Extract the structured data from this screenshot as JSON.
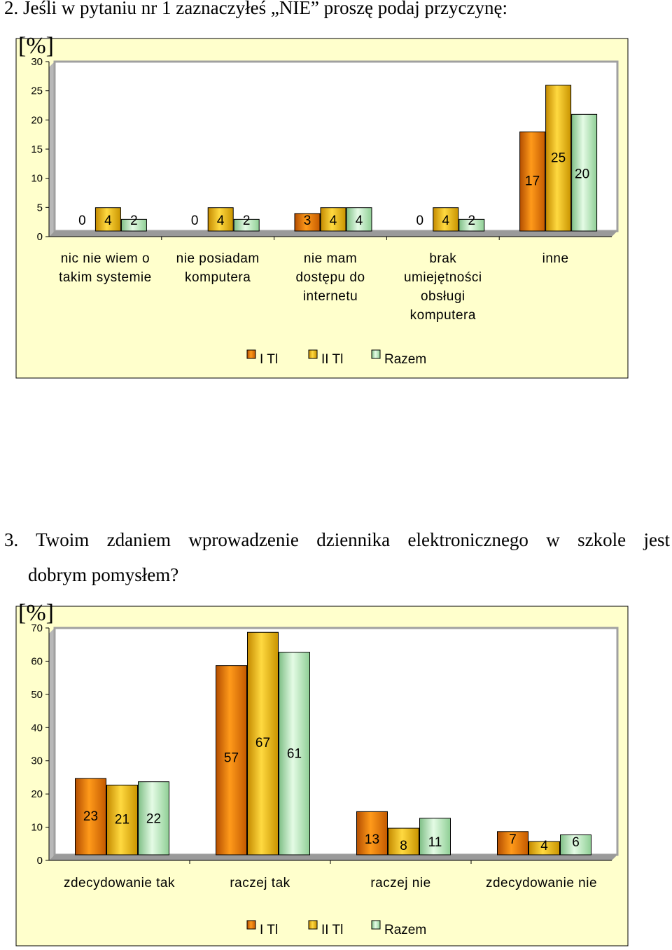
{
  "questions": {
    "q1": "2. Jeśli w pytaniu nr 1 zaznaczyłeś „NIE” proszę podaj przyczynę:",
    "q2_line1": "3. Twoim zdaniem wprowadzenie dziennika elektronicznego w szkole jest",
    "q2_line2": "dobrym pomysłem?"
  },
  "colors": {
    "I Tl": "#f08a0c",
    "II Tl": "#f7c21c",
    "Razem": "#c6f0c8",
    "plot_bg": "#ffffff",
    "chart_bg": "#ffffcc"
  },
  "chart_data": [
    {
      "type": "bar",
      "unit_label": "[%]",
      "categories": [
        [
          "nic nie wiem o",
          "takim systemie"
        ],
        [
          "nie posiadam",
          "komputera"
        ],
        [
          "nie mam",
          "dostępu do",
          "internetu"
        ],
        [
          "brak",
          "umiejętności",
          "obsługi",
          "komputera"
        ],
        [
          "inne"
        ]
      ],
      "series": [
        {
          "name": "I Tl",
          "values": [
            0,
            0,
            3,
            0,
            17
          ]
        },
        {
          "name": "II Tl",
          "values": [
            4,
            4,
            4,
            4,
            25
          ]
        },
        {
          "name": "Razem",
          "values": [
            2,
            2,
            4,
            2,
            20
          ]
        }
      ],
      "ylim": [
        0,
        30
      ],
      "yticks": [
        0,
        5,
        10,
        15,
        20,
        25,
        30
      ],
      "legend": "bottom",
      "grid": false
    },
    {
      "type": "bar",
      "unit_label": "[%]",
      "categories": [
        [
          "zdecydowanie tak"
        ],
        [
          "raczej tak"
        ],
        [
          "raczej nie"
        ],
        [
          "zdecydowanie nie"
        ]
      ],
      "series": [
        {
          "name": "I Tl",
          "values": [
            23,
            57,
            13,
            7
          ]
        },
        {
          "name": "II Tl",
          "values": [
            21,
            67,
            8,
            4
          ]
        },
        {
          "name": "Razem",
          "values": [
            22,
            61,
            11,
            6
          ]
        }
      ],
      "ylim": [
        0,
        70
      ],
      "yticks": [
        0,
        10,
        20,
        30,
        40,
        50,
        60,
        70
      ],
      "legend": "bottom",
      "grid": false
    }
  ]
}
